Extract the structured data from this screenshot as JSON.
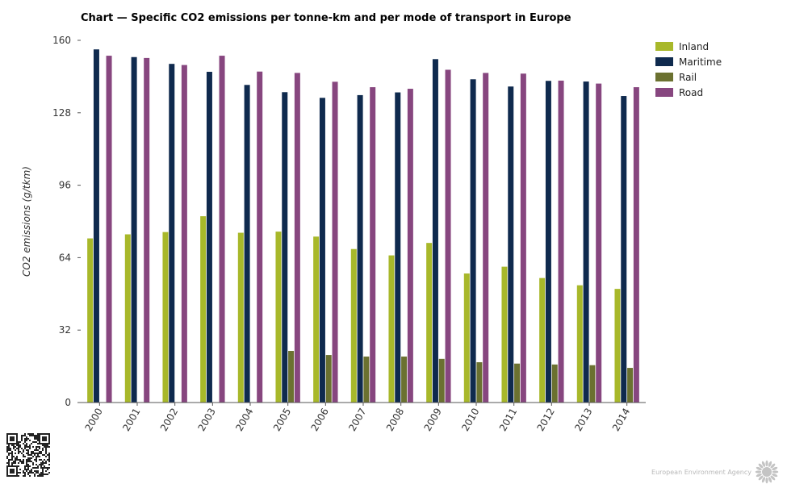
{
  "title": "Chart — Specific CO2 emissions per tonne-km and per mode of transport in Europe",
  "brand": "European Environment Agency",
  "colors": {
    "Inland": "#a8b82a",
    "Maritime": "#0f2a4e",
    "Rail": "#6b7130",
    "Road": "#87467f",
    "axis": "#555555",
    "tick_text": "#333333"
  },
  "chart_data": {
    "type": "bar",
    "ylabel": "CO2 emissions (g/tkm)",
    "xlabel": "",
    "ylim": [
      0,
      160
    ],
    "yticks": [
      0,
      32,
      64,
      96,
      128,
      160
    ],
    "grid": false,
    "legend_position": "top-right",
    "categories": [
      "2000",
      "2001",
      "2002",
      "2003",
      "2004",
      "2005",
      "2006",
      "2007",
      "2008",
      "2009",
      "2010",
      "2011",
      "2012",
      "2013",
      "2014"
    ],
    "series": [
      {
        "name": "Inland",
        "values": [
          72.5,
          74.3,
          75.3,
          82.3,
          75.0,
          75.5,
          73.3,
          67.8,
          65.0,
          70.5,
          57.0,
          60.0,
          55.0,
          51.8,
          50.2
        ]
      },
      {
        "name": "Maritime",
        "values": [
          156.0,
          152.6,
          149.6,
          146.1,
          140.3,
          137.1,
          134.6,
          135.8,
          137.0,
          151.7,
          142.8,
          139.6,
          142.1,
          141.8,
          135.4
        ]
      },
      {
        "name": "Rail",
        "values": [
          0,
          0,
          0,
          0,
          0,
          22.8,
          21.0,
          20.3,
          20.3,
          19.3,
          17.8,
          17.2,
          16.8,
          16.5,
          15.3
        ]
      },
      {
        "name": "Road",
        "values": [
          153.2,
          152.2,
          149.1,
          153.2,
          146.2,
          145.6,
          141.7,
          139.3,
          138.6,
          147.0,
          145.6,
          145.3,
          142.2,
          140.9,
          139.3
        ]
      }
    ]
  }
}
